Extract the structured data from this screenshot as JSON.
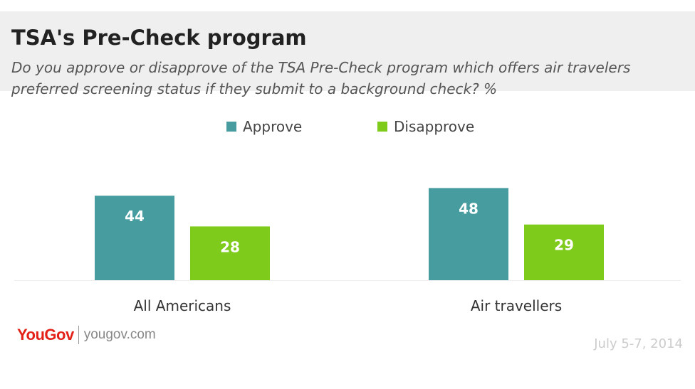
{
  "header": {
    "title": "TSA's Pre-Check program",
    "subtitle": "Do you approve or disapprove of the TSA Pre-Check program which offers air travelers preferred screening status if they submit to a background check? %"
  },
  "legend": {
    "items": [
      {
        "label": "Approve",
        "color": "#469c9f"
      },
      {
        "label": "Disapprove",
        "color": "#7fcb1c"
      }
    ]
  },
  "chart_data": {
    "type": "bar",
    "title": "TSA's Pre-Check program",
    "categories": [
      "All Americans",
      "Air travellers"
    ],
    "series": [
      {
        "name": "Approve",
        "values": [
          44,
          48
        ],
        "color": "#469c9f"
      },
      {
        "name": "Disapprove",
        "values": [
          28,
          29
        ],
        "color": "#7fcb1c"
      }
    ],
    "xlabel": "",
    "ylabel": "",
    "ylim": [
      0,
      48
    ],
    "grid": false,
    "legend_position": "top-center",
    "data_labels": true
  },
  "footer": {
    "brand": "YouGov",
    "url": "yougov.com",
    "date": "July 5-7, 2014"
  }
}
